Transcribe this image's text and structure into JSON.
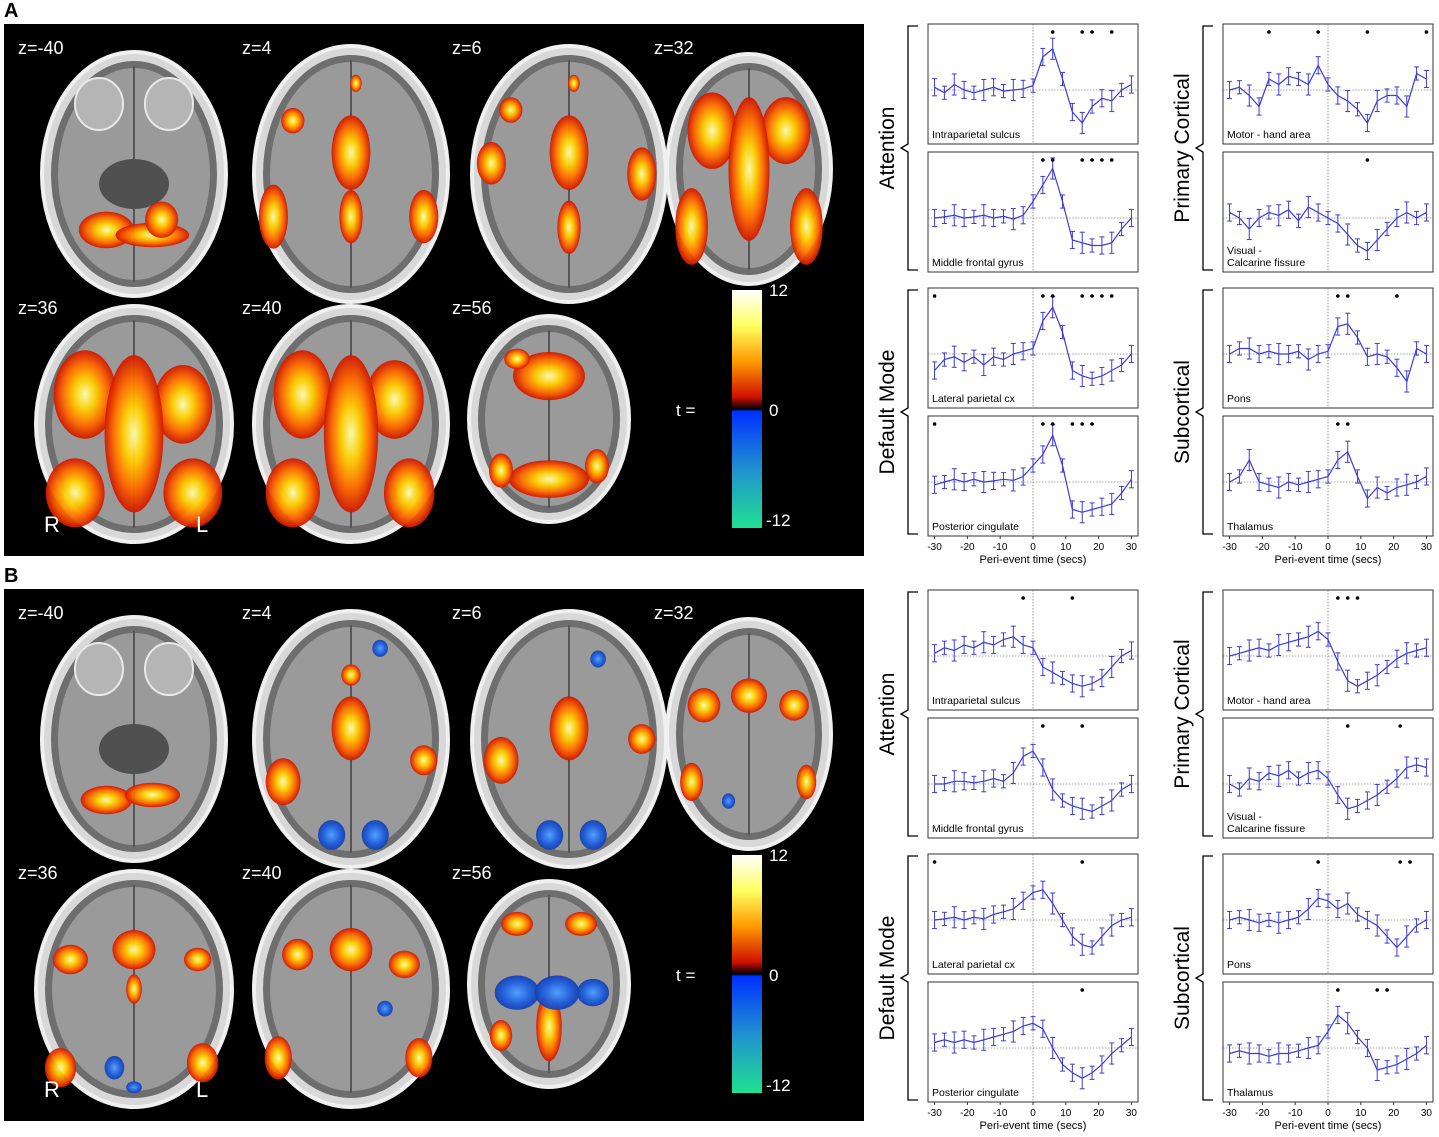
{
  "figure": {
    "panels": [
      {
        "letter": "A",
        "slices": [
          "z=-40",
          "z=4",
          "z=6",
          "z=32",
          "z=36",
          "z=40",
          "z=56"
        ],
        "colorbar": {
          "max": "12",
          "zero": "0",
          "min": "-12",
          "label": "t ="
        },
        "orientation": {
          "right": "R",
          "left": "L"
        },
        "activation": "positive-only",
        "groups": [
          {
            "name": "Attention",
            "col": 0,
            "row": 0
          },
          {
            "name": "Primary Cortical",
            "col": 1,
            "row": 0
          },
          {
            "name": "Default Mode",
            "col": 0,
            "row": 1
          },
          {
            "name": "Subcortical",
            "col": 1,
            "row": 1
          }
        ],
        "xlabel": "Peri-event time (secs)",
        "xticks": [
          "-30",
          "-20",
          "-10",
          "0",
          "10",
          "20",
          "30"
        ]
      },
      {
        "letter": "B",
        "slices": [
          "z=-40",
          "z=4",
          "z=6",
          "z=32",
          "z=36",
          "z=40",
          "z=56"
        ],
        "colorbar": {
          "max": "12",
          "zero": "0",
          "min": "-12",
          "label": "t ="
        },
        "orientation": {
          "right": "R",
          "left": "L"
        },
        "activation": "mixed",
        "groups": [
          {
            "name": "Attention",
            "col": 0,
            "row": 0
          },
          {
            "name": "Primary Cortical",
            "col": 1,
            "row": 0
          },
          {
            "name": "Default Mode",
            "col": 0,
            "row": 1
          },
          {
            "name": "Subcortical",
            "col": 1,
            "row": 1
          }
        ],
        "xlabel": "Peri-event time (secs)",
        "xticks": [
          "-30",
          "-20",
          "-10",
          "0",
          "10",
          "20",
          "30"
        ]
      }
    ],
    "colors": {
      "trace": "#3b3bd8",
      "panel_bg": "#000000"
    }
  },
  "chart_data": [
    {
      "panel": "A",
      "type": "line",
      "title": "Intraparietal sulcus",
      "xlabel": "Peri-event time (secs)",
      "xlim": [
        -32,
        32
      ],
      "x": [
        -30,
        -27,
        -24,
        -21,
        -18,
        -15,
        -12,
        -9,
        -6,
        -3,
        0,
        3,
        6,
        9,
        12,
        15,
        18,
        21,
        24,
        27,
        30
      ],
      "values": [
        0.05,
        -0.05,
        0.1,
        0.0,
        -0.05,
        0.0,
        0.05,
        -0.02,
        0.0,
        0.02,
        0.08,
        0.6,
        0.75,
        0.2,
        -0.4,
        -0.6,
        -0.3,
        -0.15,
        -0.2,
        0.0,
        0.1
      ],
      "significant_x": [
        6,
        15,
        18,
        24
      ]
    },
    {
      "panel": "A",
      "type": "line",
      "title": "Middle frontal gyrus",
      "xlabel": "Peri-event time (secs)",
      "xlim": [
        -32,
        32
      ],
      "x": [
        -30,
        -27,
        -24,
        -21,
        -18,
        -15,
        -12,
        -9,
        -6,
        -3,
        0,
        3,
        6,
        9,
        12,
        15,
        18,
        21,
        24,
        27,
        30
      ],
      "values": [
        0.0,
        0.02,
        0.05,
        0.0,
        0.02,
        0.05,
        0.0,
        0.03,
        -0.02,
        0.05,
        0.3,
        0.6,
        0.9,
        0.3,
        -0.4,
        -0.45,
        -0.5,
        -0.5,
        -0.45,
        -0.2,
        0.0
      ],
      "significant_x": [
        3,
        6,
        15,
        18,
        21,
        24
      ]
    },
    {
      "panel": "A",
      "type": "line",
      "title": "Lateral parietal cx",
      "xlabel": "Peri-event time (secs)",
      "xlim": [
        -32,
        32
      ],
      "x": [
        -30,
        -27,
        -24,
        -21,
        -18,
        -15,
        -12,
        -9,
        -6,
        -3,
        0,
        3,
        6,
        9,
        12,
        15,
        18,
        21,
        24,
        27,
        30
      ],
      "values": [
        -0.3,
        -0.1,
        -0.05,
        -0.15,
        -0.05,
        -0.2,
        -0.05,
        -0.1,
        0.0,
        0.05,
        0.1,
        0.6,
        0.85,
        0.4,
        -0.3,
        -0.4,
        -0.45,
        -0.4,
        -0.3,
        -0.2,
        0.0
      ],
      "significant_x": [
        -30,
        3,
        6,
        15,
        18,
        21,
        24
      ]
    },
    {
      "panel": "A",
      "type": "line",
      "title": "Posterior cingulate",
      "xlabel": "Peri-event time (secs)",
      "xlim": [
        -32,
        32
      ],
      "x": [
        -30,
        -27,
        -24,
        -21,
        -18,
        -15,
        -12,
        -9,
        -6,
        -3,
        0,
        3,
        6,
        9,
        12,
        15,
        18,
        21,
        24,
        27,
        30
      ],
      "values": [
        -0.05,
        0.0,
        0.05,
        0.0,
        0.05,
        0.0,
        0.02,
        0.05,
        0.03,
        0.1,
        0.3,
        0.5,
        0.85,
        0.3,
        -0.5,
        -0.55,
        -0.5,
        -0.45,
        -0.4,
        -0.2,
        0.05
      ],
      "significant_x": [
        -30,
        3,
        6,
        12,
        15,
        18
      ]
    },
    {
      "panel": "A",
      "type": "line",
      "title": "Motor - hand area",
      "xlabel": "Peri-event time (secs)",
      "xlim": [
        -32,
        32
      ],
      "x": [
        -30,
        -27,
        -24,
        -21,
        -18,
        -15,
        -12,
        -9,
        -6,
        -3,
        0,
        3,
        6,
        9,
        12,
        15,
        18,
        21,
        24,
        27,
        30
      ],
      "values": [
        0.0,
        0.05,
        -0.1,
        -0.3,
        0.2,
        0.1,
        0.25,
        0.2,
        0.1,
        0.45,
        0.1,
        -0.1,
        -0.2,
        -0.35,
        -0.6,
        -0.2,
        -0.1,
        -0.1,
        -0.3,
        0.3,
        0.2
      ],
      "significant_x": [
        -18,
        -3,
        12,
        30
      ]
    },
    {
      "panel": "A",
      "type": "line",
      "title": "Visual - Calcarine fissure",
      "xlabel": "Peri-event time (secs)",
      "xlim": [
        -32,
        32
      ],
      "x": [
        -30,
        -27,
        -24,
        -21,
        -18,
        -15,
        -12,
        -9,
        -6,
        -3,
        0,
        3,
        6,
        9,
        12,
        15,
        18,
        21,
        24,
        27,
        30
      ],
      "values": [
        0.1,
        0.0,
        -0.2,
        0.0,
        0.1,
        0.05,
        0.15,
        -0.05,
        0.2,
        0.1,
        0.0,
        -0.1,
        -0.3,
        -0.5,
        -0.6,
        -0.4,
        -0.2,
        0.0,
        0.1,
        0.0,
        0.1
      ],
      "significant_x": [
        12
      ]
    },
    {
      "panel": "A",
      "type": "line",
      "title": "Pons",
      "xlabel": "Peri-event time (secs)",
      "xlim": [
        -32,
        32
      ],
      "x": [
        -30,
        -27,
        -24,
        -21,
        -18,
        -15,
        -12,
        -9,
        -6,
        -3,
        0,
        3,
        6,
        9,
        12,
        15,
        18,
        21,
        24,
        27,
        30
      ],
      "values": [
        0.0,
        0.1,
        0.1,
        0.0,
        0.05,
        0.0,
        0.0,
        0.05,
        -0.1,
        0.0,
        0.05,
        0.5,
        0.55,
        0.3,
        -0.05,
        0.0,
        -0.05,
        -0.25,
        -0.5,
        0.1,
        0.0
      ],
      "significant_x": [
        3,
        6,
        21
      ]
    },
    {
      "panel": "A",
      "type": "line",
      "title": "Thalamus",
      "xlabel": "Peri-event time (secs)",
      "xlim": [
        -32,
        32
      ],
      "x": [
        -30,
        -27,
        -24,
        -21,
        -18,
        -15,
        -12,
        -9,
        -6,
        -3,
        0,
        3,
        6,
        9,
        12,
        15,
        18,
        21,
        24,
        27,
        30
      ],
      "values": [
        0.0,
        0.1,
        0.4,
        0.0,
        -0.05,
        -0.1,
        0.0,
        -0.05,
        0.0,
        0.05,
        0.1,
        0.4,
        0.55,
        0.1,
        -0.3,
        -0.1,
        -0.2,
        -0.1,
        -0.05,
        0.0,
        0.1
      ],
      "significant_x": [
        3,
        6
      ]
    },
    {
      "panel": "B",
      "type": "line",
      "title": "Intraparietal sulcus",
      "xlabel": "Peri-event time (secs)",
      "xlim": [
        -32,
        32
      ],
      "x": [
        -30,
        -27,
        -24,
        -21,
        -18,
        -15,
        -12,
        -9,
        -6,
        -3,
        0,
        3,
        6,
        9,
        12,
        15,
        18,
        21,
        24,
        27,
        30
      ],
      "values": [
        0.05,
        0.15,
        0.1,
        0.2,
        0.15,
        0.25,
        0.2,
        0.3,
        0.35,
        0.2,
        0.15,
        -0.2,
        -0.3,
        -0.4,
        -0.5,
        -0.55,
        -0.5,
        -0.4,
        -0.2,
        0.0,
        0.1
      ],
      "significant_x": [
        -3,
        12
      ]
    },
    {
      "panel": "B",
      "type": "line",
      "title": "Middle frontal gyrus",
      "xlabel": "Peri-event time (secs)",
      "xlim": [
        -32,
        32
      ],
      "x": [
        -30,
        -27,
        -24,
        -21,
        -18,
        -15,
        -12,
        -9,
        -6,
        -3,
        0,
        3,
        6,
        9,
        12,
        15,
        18,
        21,
        24,
        27,
        30
      ],
      "values": [
        0.0,
        0.0,
        0.05,
        0.05,
        0.02,
        0.05,
        0.1,
        0.05,
        0.2,
        0.5,
        0.6,
        0.3,
        -0.1,
        -0.3,
        -0.4,
        -0.45,
        -0.5,
        -0.4,
        -0.3,
        -0.1,
        0.0
      ],
      "significant_x": [
        3,
        15
      ]
    },
    {
      "panel": "B",
      "type": "line",
      "title": "Lateral parietal cx",
      "xlabel": "Peri-event time (secs)",
      "xlim": [
        -32,
        32
      ],
      "x": [
        -30,
        -27,
        -24,
        -21,
        -18,
        -15,
        -12,
        -9,
        -6,
        -3,
        0,
        3,
        6,
        9,
        12,
        15,
        18,
        21,
        24,
        27,
        30
      ],
      "values": [
        0.0,
        0.02,
        0.05,
        0.0,
        0.05,
        0.02,
        0.1,
        0.15,
        0.2,
        0.35,
        0.5,
        0.55,
        0.3,
        0.0,
        -0.3,
        -0.45,
        -0.5,
        -0.3,
        -0.1,
        0.0,
        0.05
      ],
      "significant_x": [
        -30,
        15
      ]
    },
    {
      "panel": "B",
      "type": "line",
      "title": "Posterior cingulate",
      "xlabel": "Peri-event time (secs)",
      "xlim": [
        -32,
        32
      ],
      "x": [
        -30,
        -27,
        -24,
        -21,
        -18,
        -15,
        -12,
        -9,
        -6,
        -3,
        0,
        3,
        6,
        9,
        12,
        15,
        18,
        21,
        24,
        27,
        30
      ],
      "values": [
        0.1,
        0.15,
        0.1,
        0.15,
        0.1,
        0.15,
        0.2,
        0.25,
        0.3,
        0.4,
        0.45,
        0.35,
        0.0,
        -0.3,
        -0.45,
        -0.55,
        -0.45,
        -0.3,
        -0.1,
        0.05,
        0.2
      ],
      "significant_x": [
        15
      ]
    },
    {
      "panel": "B",
      "type": "line",
      "title": "Motor - hand area",
      "xlabel": "Peri-event time (secs)",
      "xlim": [
        -32,
        32
      ],
      "x": [
        -30,
        -27,
        -24,
        -21,
        -18,
        -15,
        -12,
        -9,
        -6,
        -3,
        0,
        3,
        6,
        9,
        12,
        15,
        18,
        21,
        24,
        27,
        30
      ],
      "values": [
        0.0,
        0.05,
        0.1,
        0.15,
        0.1,
        0.2,
        0.25,
        0.3,
        0.35,
        0.45,
        0.3,
        -0.1,
        -0.45,
        -0.55,
        -0.45,
        -0.35,
        -0.2,
        -0.05,
        0.05,
        0.1,
        0.15
      ],
      "significant_x": [
        3,
        6,
        9
      ]
    },
    {
      "panel": "B",
      "type": "line",
      "title": "Visual - Calcarine fissure",
      "xlabel": "Peri-event time (secs)",
      "xlim": [
        -32,
        32
      ],
      "x": [
        -30,
        -27,
        -24,
        -21,
        -18,
        -15,
        -12,
        -9,
        -6,
        -3,
        0,
        3,
        6,
        9,
        12,
        15,
        18,
        21,
        24,
        27,
        30
      ],
      "values": [
        0.0,
        -0.1,
        0.1,
        0.05,
        0.2,
        0.15,
        0.25,
        0.1,
        0.2,
        0.25,
        0.1,
        -0.2,
        -0.45,
        -0.4,
        -0.3,
        -0.2,
        -0.05,
        0.1,
        0.3,
        0.35,
        0.3
      ],
      "significant_x": [
        6,
        22
      ]
    },
    {
      "panel": "B",
      "type": "line",
      "title": "Pons",
      "xlabel": "Peri-event time (secs)",
      "xlim": [
        -32,
        32
      ],
      "x": [
        -30,
        -27,
        -24,
        -21,
        -18,
        -15,
        -12,
        -9,
        -6,
        -3,
        0,
        3,
        6,
        9,
        12,
        15,
        18,
        21,
        24,
        27,
        30
      ],
      "values": [
        0.0,
        0.05,
        0.0,
        -0.05,
        0.0,
        -0.05,
        0.0,
        0.05,
        0.2,
        0.4,
        0.35,
        0.2,
        0.3,
        0.1,
        0.0,
        -0.1,
        -0.3,
        -0.5,
        -0.3,
        -0.1,
        0.0
      ],
      "significant_x": [
        -3,
        22,
        25
      ]
    },
    {
      "panel": "B",
      "type": "line",
      "title": "Thalamus",
      "xlabel": "Peri-event time (secs)",
      "xlim": [
        -32,
        32
      ],
      "x": [
        -30,
        -27,
        -24,
        -21,
        -18,
        -15,
        -12,
        -9,
        -6,
        -3,
        0,
        3,
        6,
        9,
        12,
        15,
        18,
        21,
        24,
        27,
        30
      ],
      "values": [
        -0.1,
        -0.05,
        -0.1,
        -0.1,
        -0.15,
        -0.1,
        -0.1,
        -0.05,
        0.0,
        0.05,
        0.3,
        0.6,
        0.45,
        0.2,
        0.0,
        -0.4,
        -0.35,
        -0.3,
        -0.2,
        -0.1,
        0.05
      ],
      "significant_x": [
        3,
        15,
        18
      ]
    }
  ]
}
